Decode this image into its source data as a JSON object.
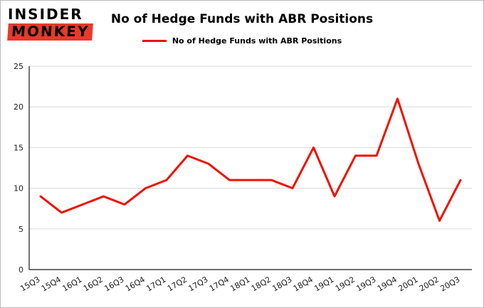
{
  "logo": {
    "line1": "INSIDER",
    "line2": "MONKEY"
  },
  "chart_data": {
    "type": "line",
    "title": "No of Hedge Funds with ABR Positions",
    "legend": "No of Hedge Funds with ABR Positions",
    "legend_position": "top",
    "grid": true,
    "categories": [
      "15Q3",
      "15Q4",
      "16Q1",
      "16Q2",
      "16Q3",
      "16Q4",
      "17Q1",
      "17Q2",
      "17Q3",
      "17Q4",
      "18Q1",
      "18Q2",
      "18Q3",
      "18Q4",
      "19Q1",
      "19Q2",
      "19Q3",
      "19Q4",
      "20Q1",
      "20Q2",
      "20Q3"
    ],
    "values": [
      9,
      7,
      8,
      9,
      8,
      10,
      11,
      14,
      13,
      11,
      11,
      11,
      10,
      15,
      9,
      14,
      14,
      21,
      13,
      6,
      11
    ],
    "xlabel": "",
    "ylabel": "",
    "ylim": [
      0,
      25
    ],
    "yticks": [
      0,
      5,
      10,
      15,
      20,
      25
    ],
    "line_color": "#ee1100"
  }
}
